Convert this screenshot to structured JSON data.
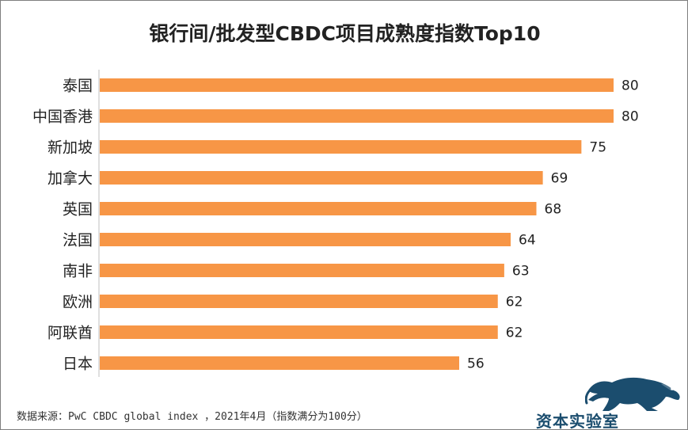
{
  "title": "银行间/批发型CBDC项目成熟度指数Top10",
  "source_note": "数据来源：PwC CBDC global index ，2021年4月（指数满分为100分）",
  "brand": {
    "name": "资本实验室",
    "icon": "leopard-logo-icon"
  },
  "colors": {
    "bar": "#f79646",
    "text": "#222222",
    "axis": "#bfbfbf",
    "brand": "#1b4d6e"
  },
  "chart_data": {
    "type": "bar",
    "orientation": "horizontal",
    "title": "银行间/批发型CBDC项目成熟度指数Top10",
    "categories": [
      "泰国",
      "中国香港",
      "新加坡",
      "加拿大",
      "英国",
      "法国",
      "南非",
      "欧洲",
      "阿联酋",
      "日本"
    ],
    "values": [
      80,
      80,
      75,
      69,
      68,
      64,
      63,
      62,
      62,
      56
    ],
    "xlim": [
      0,
      80
    ],
    "grid": false,
    "legend": false,
    "data_labels": true
  }
}
